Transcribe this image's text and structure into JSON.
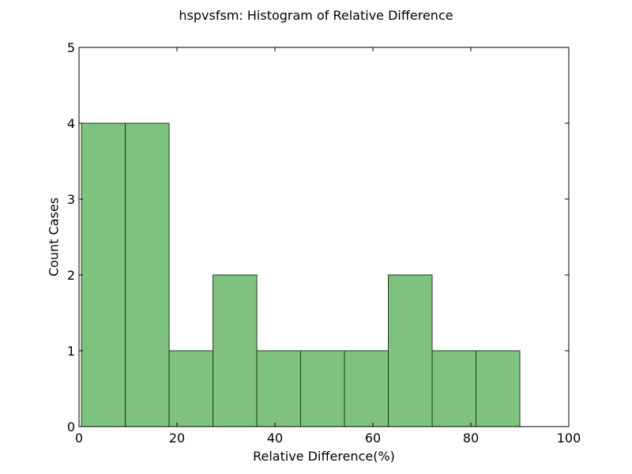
{
  "chart_data": {
    "type": "bar",
    "title": "hspvsfsm: Histogram of Relative Difference",
    "xlabel": "Relative Difference(%)",
    "ylabel": "Count Cases",
    "bins": [
      {
        "x0": 0.5,
        "x1": 9.45,
        "count": 4
      },
      {
        "x0": 9.45,
        "x1": 18.4,
        "count": 4
      },
      {
        "x0": 18.4,
        "x1": 27.35,
        "count": 1
      },
      {
        "x0": 27.35,
        "x1": 36.3,
        "count": 2
      },
      {
        "x0": 36.3,
        "x1": 45.25,
        "count": 1
      },
      {
        "x0": 45.25,
        "x1": 54.2,
        "count": 1
      },
      {
        "x0": 54.2,
        "x1": 63.15,
        "count": 1
      },
      {
        "x0": 63.15,
        "x1": 72.1,
        "count": 2
      },
      {
        "x0": 72.1,
        "x1": 81.05,
        "count": 1
      },
      {
        "x0": 81.05,
        "x1": 90.0,
        "count": 1
      }
    ],
    "xlim": [
      0,
      100
    ],
    "ylim": [
      0,
      5
    ],
    "xticks": [
      "0",
      "20",
      "40",
      "60",
      "80",
      "100"
    ],
    "yticks": [
      "0",
      "1",
      "2",
      "3",
      "4",
      "5"
    ],
    "bar_color": "#7fc17f",
    "bar_edge_color": "#1f3a1f",
    "grid": false
  }
}
